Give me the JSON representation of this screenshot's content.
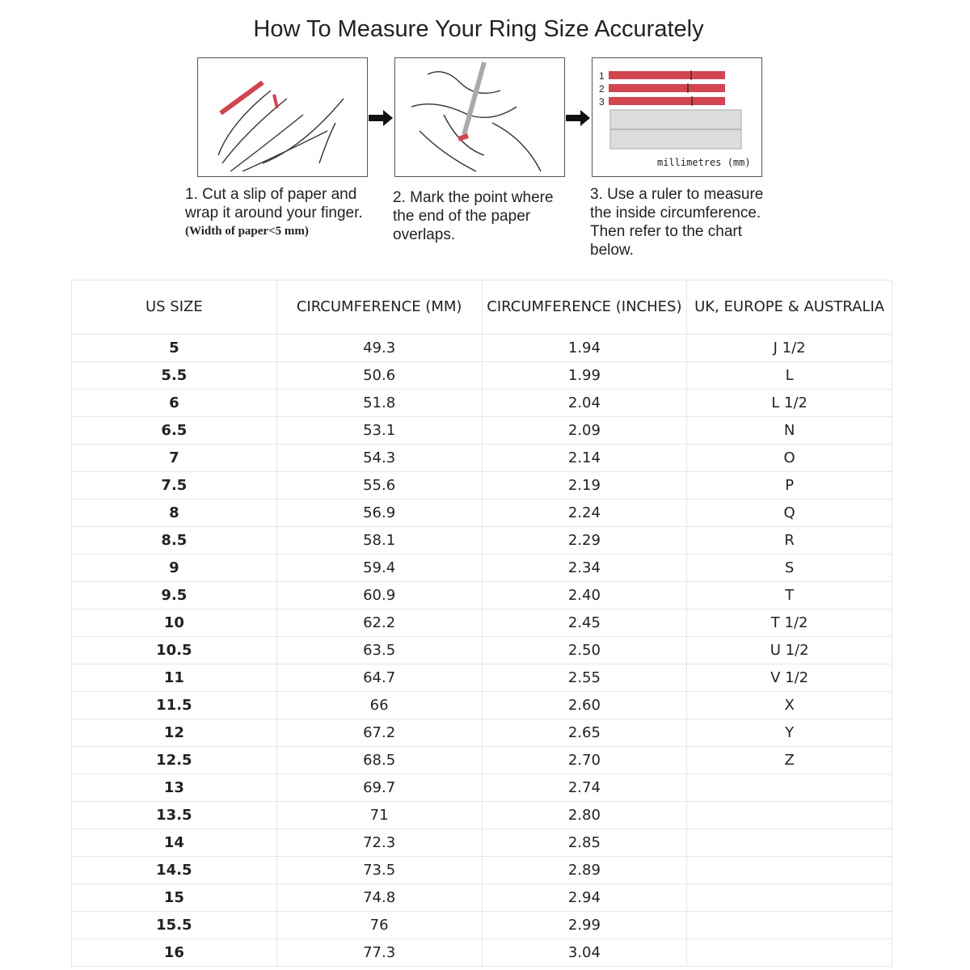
{
  "title": "How To Measure Your Ring Size Accurately",
  "steps": [
    {
      "text": "1. Cut a slip of paper and wrap it around your finger.",
      "note": "(Width of paper<5 mm)"
    },
    {
      "text": "2. Mark the point where the end of the paper overlaps."
    },
    {
      "text": "3. Use a ruler to measure the inside circumference. Then refer to the chart below."
    }
  ],
  "ruler_illustration": {
    "strip_labels": [
      "1",
      "2",
      "3"
    ],
    "unit_label": "millimetres (mm)"
  },
  "colors": {
    "paper_strip": "#d0454f",
    "border": "#e6e6e6"
  },
  "table": {
    "headers": [
      "US SIZE",
      "CIRCUMFERENCE (MM)",
      "CIRCUMFERENCE (INCHES)",
      "UK, EUROPE & AUSTRALIA"
    ],
    "rows": [
      [
        "5",
        "49.3",
        "1.94",
        "J 1/2"
      ],
      [
        "5.5",
        "50.6",
        "1.99",
        "L"
      ],
      [
        "6",
        "51.8",
        "2.04",
        "L 1/2"
      ],
      [
        "6.5",
        "53.1",
        "2.09",
        "N"
      ],
      [
        "7",
        "54.3",
        "2.14",
        "O"
      ],
      [
        "7.5",
        "55.6",
        "2.19",
        "P"
      ],
      [
        "8",
        "56.9",
        "2.24",
        "Q"
      ],
      [
        "8.5",
        "58.1",
        "2.29",
        "R"
      ],
      [
        "9",
        "59.4",
        "2.34",
        "S"
      ],
      [
        "9.5",
        "60.9",
        "2.40",
        "T"
      ],
      [
        "10",
        "62.2",
        "2.45",
        "T 1/2"
      ],
      [
        "10.5",
        "63.5",
        "2.50",
        "U 1/2"
      ],
      [
        "11",
        "64.7",
        "2.55",
        "V 1/2"
      ],
      [
        "11.5",
        "66",
        "2.60",
        "X"
      ],
      [
        "12",
        "67.2",
        "2.65",
        "Y"
      ],
      [
        "12.5",
        "68.5",
        "2.70",
        "Z"
      ],
      [
        "13",
        "69.7",
        "2.74",
        ""
      ],
      [
        "13.5",
        "71",
        "2.80",
        ""
      ],
      [
        "14",
        "72.3",
        "2.85",
        ""
      ],
      [
        "14.5",
        "73.5",
        "2.89",
        ""
      ],
      [
        "15",
        "74.8",
        "2.94",
        ""
      ],
      [
        "15.5",
        "76",
        "2.99",
        ""
      ],
      [
        "16",
        "77.3",
        "3.04",
        ""
      ]
    ]
  }
}
